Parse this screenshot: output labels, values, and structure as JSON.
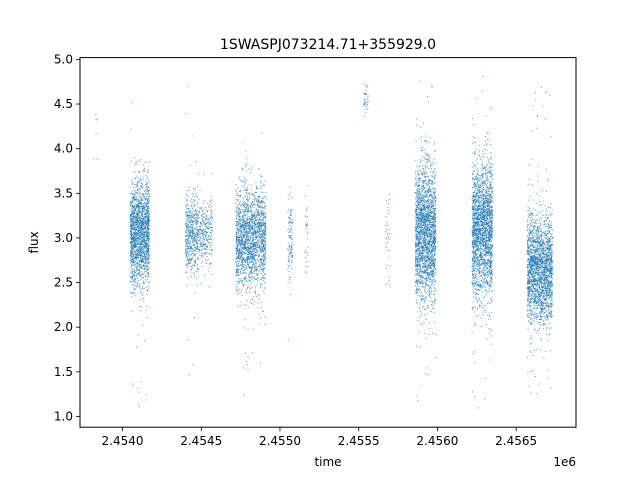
{
  "chart_data": {
    "type": "scatter",
    "title": "1SWASPJ073214.71+355929.0",
    "xlabel": "time",
    "ylabel": "flux",
    "x_offset_label": "1e6",
    "xlim": [
      2.45373,
      2.45688
    ],
    "ylim": [
      0.88,
      5.02
    ],
    "x_ticks": [
      2.454,
      2.4545,
      2.455,
      2.4555,
      2.456,
      2.4565
    ],
    "x_tick_labels": [
      "2.4540",
      "2.4545",
      "2.4550",
      "2.4555",
      "2.4560",
      "2.4565"
    ],
    "y_ticks": [
      1.0,
      1.5,
      2.0,
      2.5,
      3.0,
      3.5,
      4.0,
      4.5,
      5.0
    ],
    "y_tick_labels": [
      "1.0",
      "1.5",
      "2.0",
      "2.5",
      "3.0",
      "3.5",
      "4.0",
      "4.5",
      "5.0"
    ],
    "grid": false,
    "marker_color": "#1f77b4",
    "clusters": [
      {
        "x_range": [
          2.45382,
          2.45384
        ],
        "y_center": 4.2,
        "y_spread": 0.25,
        "y_min": 3.8,
        "y_max": 4.6,
        "count": 6
      },
      {
        "x_range": [
          2.45405,
          2.45417
        ],
        "y_center": 3.05,
        "y_spread": 0.3,
        "y_min": 1.05,
        "y_max": 4.8,
        "count": 1800
      },
      {
        "x_range": [
          2.4544,
          2.45448
        ],
        "y_center": 3.05,
        "y_spread": 0.22,
        "y_min": 1.2,
        "y_max": 4.8,
        "count": 500
      },
      {
        "x_range": [
          2.45448,
          2.45457
        ],
        "y_center": 3.05,
        "y_spread": 0.2,
        "y_min": 2.4,
        "y_max": 3.8,
        "count": 300
      },
      {
        "x_range": [
          2.45472,
          2.45491
        ],
        "y_center": 3.0,
        "y_spread": 0.28,
        "y_min": 1.1,
        "y_max": 4.2,
        "count": 1900
      },
      {
        "x_range": [
          2.45505,
          2.45508
        ],
        "y_center": 3.0,
        "y_spread": 0.3,
        "y_min": 1.65,
        "y_max": 3.6,
        "count": 120
      },
      {
        "x_range": [
          2.45516,
          2.45518
        ],
        "y_center": 3.1,
        "y_spread": 0.25,
        "y_min": 2.4,
        "y_max": 3.6,
        "count": 30
      },
      {
        "x_range": [
          2.45553,
          2.45556
        ],
        "y_center": 4.6,
        "y_spread": 0.12,
        "y_min": 4.2,
        "y_max": 4.8,
        "count": 40
      },
      {
        "x_range": [
          2.45567,
          2.4557
        ],
        "y_center": 2.95,
        "y_spread": 0.35,
        "y_min": 2.3,
        "y_max": 3.5,
        "count": 40
      },
      {
        "x_range": [
          2.45586,
          2.45599
        ],
        "y_center": 3.05,
        "y_spread": 0.38,
        "y_min": 1.1,
        "y_max": 4.8,
        "count": 2200
      },
      {
        "x_range": [
          2.45622,
          2.45635
        ],
        "y_center": 3.1,
        "y_spread": 0.38,
        "y_min": 1.05,
        "y_max": 4.85,
        "count": 2200
      },
      {
        "x_range": [
          2.45657,
          2.45673
        ],
        "y_center": 2.65,
        "y_spread": 0.3,
        "y_min": 1.15,
        "y_max": 4.7,
        "count": 2200
      }
    ]
  }
}
